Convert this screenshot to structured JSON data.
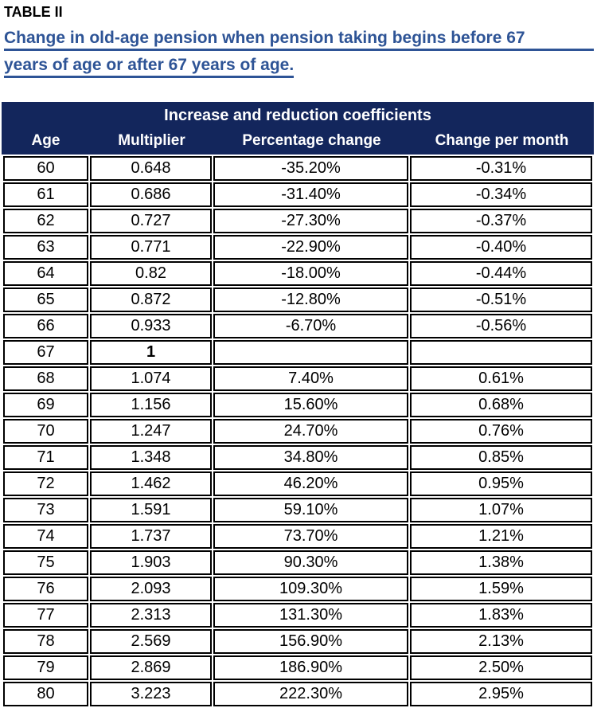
{
  "doc": {
    "title": "TABLE II",
    "subtitle_line1": "Change in old-age pension when pension taking begins before 67",
    "subtitle_line2": "years of age or after 67 years of age."
  },
  "table": {
    "title": "Increase and reduction coefficients",
    "columns": [
      "Age",
      "Multiplier",
      "Percentage change",
      "Change per month"
    ],
    "baseline_age": "67",
    "rows": [
      [
        "60",
        "0.648",
        "-35.20%",
        "-0.31%"
      ],
      [
        "61",
        "0.686",
        "-31.40%",
        "-0.34%"
      ],
      [
        "62",
        "0.727",
        "-27.30%",
        "-0.37%"
      ],
      [
        "63",
        "0.771",
        "-22.90%",
        "-0.40%"
      ],
      [
        "64",
        "0.82",
        "-18.00%",
        "-0.44%"
      ],
      [
        "65",
        "0.872",
        "-12.80%",
        "-0.51%"
      ],
      [
        "66",
        "0.933",
        "-6.70%",
        "-0.56%"
      ],
      [
        "67",
        "1",
        "",
        ""
      ],
      [
        "68",
        "1.074",
        "7.40%",
        "0.61%"
      ],
      [
        "69",
        "1.156",
        "15.60%",
        "0.68%"
      ],
      [
        "70",
        "1.247",
        "24.70%",
        "0.76%"
      ],
      [
        "71",
        "1.348",
        "34.80%",
        "0.85%"
      ],
      [
        "72",
        "1.462",
        "46.20%",
        "0.95%"
      ],
      [
        "73",
        "1.591",
        "59.10%",
        "1.07%"
      ],
      [
        "74",
        "1.737",
        "73.70%",
        "1.21%"
      ],
      [
        "75",
        "1.903",
        "90.30%",
        "1.38%"
      ],
      [
        "76",
        "2.093",
        "109.30%",
        "1.59%"
      ],
      [
        "77",
        "2.313",
        "131.30%",
        "1.83%"
      ],
      [
        "78",
        "2.569",
        "156.90%",
        "2.13%"
      ],
      [
        "79",
        "2.869",
        "186.90%",
        "2.50%"
      ],
      [
        "80",
        "3.223",
        "222.30%",
        "2.95%"
      ]
    ]
  },
  "colors": {
    "header_bg": "#13265C",
    "heading_blue": "#2E5496",
    "grid_border": "#000000"
  }
}
